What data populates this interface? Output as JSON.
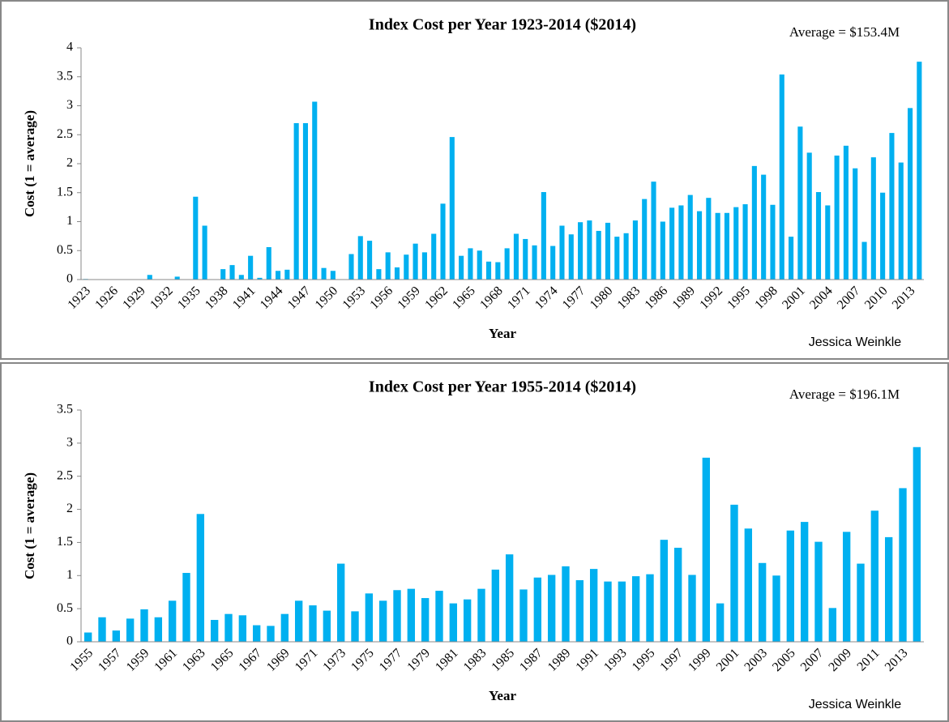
{
  "chart_data": [
    {
      "type": "bar",
      "title": "Index Cost per Year 1923-2014 ($2014)",
      "annotations": [
        "Average = $153.4M",
        "Jessica Weinkle"
      ],
      "xlabel": "Year",
      "ylabel": "Cost (1 = average)",
      "color": "#00b0f0",
      "categories": [
        "1923",
        null,
        null,
        "1926",
        null,
        null,
        "1929",
        null,
        null,
        "1932",
        null,
        null,
        "1935",
        null,
        null,
        "1938",
        null,
        null,
        "1941",
        null,
        null,
        "1944",
        null,
        null,
        "1947",
        null,
        null,
        "1950",
        null,
        null,
        "1953",
        null,
        null,
        "1956",
        null,
        null,
        "1959",
        null,
        null,
        "1962",
        null,
        null,
        "1965",
        null,
        null,
        "1968",
        null,
        null,
        "1971",
        null,
        null,
        "1974",
        null,
        null,
        "1977",
        null,
        null,
        "1980",
        null,
        null,
        "1983",
        null,
        null,
        "1986",
        null,
        null,
        "1989",
        null,
        null,
        "1992",
        null,
        null,
        "1995",
        null,
        null,
        "1998",
        null,
        null,
        "2001",
        null,
        null,
        "2004",
        null,
        null,
        "2007",
        null,
        null,
        "2010",
        null,
        null,
        "2013",
        null
      ],
      "values": [
        0.01,
        0,
        0,
        0,
        0,
        0,
        0,
        0.08,
        0,
        0,
        0.05,
        0,
        1.43,
        0.93,
        0,
        0.18,
        0.25,
        0.08,
        0.41,
        0.03,
        0.56,
        0.15,
        0.17,
        2.7,
        2.7,
        3.07,
        0.2,
        0.15,
        0,
        0.44,
        0.75,
        0.67,
        0.18,
        0.47,
        0.21,
        0.43,
        0.62,
        0.47,
        0.79,
        1.31,
        2.46,
        0.41,
        0.54,
        0.5,
        0.31,
        0.3,
        0.54,
        0.79,
        0.7,
        0.59,
        1.51,
        0.58,
        0.93,
        0.78,
        0.99,
        1.02,
        0.84,
        0.98,
        0.74,
        0.8,
        1.02,
        1.39,
        1.69,
        1.0,
        1.24,
        1.28,
        1.46,
        1.18,
        1.41,
        1.15,
        1.15,
        1.25,
        1.3,
        1.96,
        1.81,
        1.29,
        3.54,
        0.74,
        2.64,
        2.19,
        1.51,
        1.28,
        2.14,
        2.31,
        1.92,
        0.65,
        2.11,
        1.5,
        2.53,
        2.02,
        2.96,
        3.76
      ],
      "ylim": [
        0,
        4
      ],
      "yticks": [
        0,
        0.5,
        1,
        1.5,
        2,
        2.5,
        3,
        3.5,
        4
      ]
    },
    {
      "type": "bar",
      "title": "Index Cost per Year 1955-2014 ($2014)",
      "annotations": [
        "Average = $196.1M",
        "Jessica Weinkle"
      ],
      "xlabel": "Year",
      "ylabel": "Cost (1 = average)",
      "color": "#00b0f0",
      "categories": [
        "1955",
        null,
        "1957",
        null,
        "1959",
        null,
        "1961",
        null,
        "1963",
        null,
        "1965",
        null,
        "1967",
        null,
        "1969",
        null,
        "1971",
        null,
        "1973",
        null,
        "1975",
        null,
        "1977",
        null,
        "1979",
        null,
        "1981",
        null,
        "1983",
        null,
        "1985",
        null,
        "1987",
        null,
        "1989",
        null,
        "1991",
        null,
        "1993",
        null,
        "1995",
        null,
        "1997",
        null,
        "1999",
        null,
        "2001",
        null,
        "2003",
        null,
        "2005",
        null,
        "2007",
        null,
        "2009",
        null,
        "2011",
        null,
        "2013",
        null
      ],
      "values": [
        0.14,
        0.37,
        0.17,
        0.35,
        0.49,
        0.37,
        0.62,
        1.04,
        1.93,
        0.33,
        0.42,
        0.4,
        0.25,
        0.24,
        0.42,
        0.62,
        0.55,
        0.47,
        1.18,
        0.46,
        0.73,
        0.62,
        0.78,
        0.8,
        0.66,
        0.77,
        0.58,
        0.64,
        0.8,
        1.09,
        1.32,
        0.79,
        0.97,
        1.01,
        1.14,
        0.93,
        1.1,
        0.91,
        0.91,
        0.99,
        1.02,
        1.54,
        1.42,
        1.01,
        2.78,
        0.58,
        2.07,
        1.71,
        1.19,
        1.0,
        1.68,
        1.81,
        1.51,
        0.51,
        1.66,
        1.18,
        1.98,
        1.58,
        2.32,
        2.94
      ],
      "ylim": [
        0,
        3.5
      ],
      "yticks": [
        0,
        0.5,
        1,
        1.5,
        2,
        2.5,
        3,
        3.5
      ]
    }
  ]
}
